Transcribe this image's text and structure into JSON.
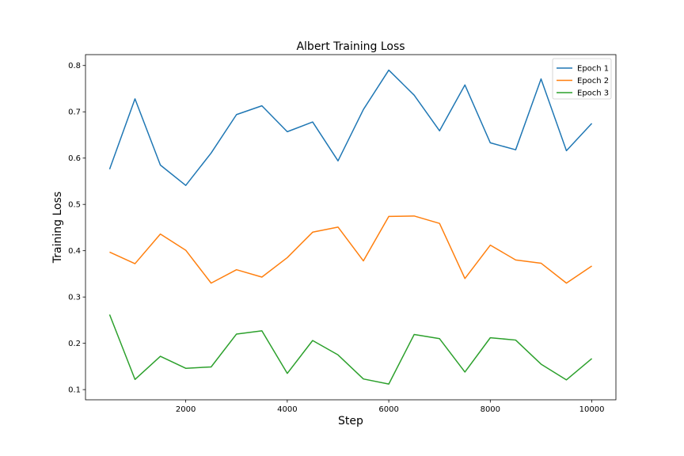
{
  "chart_data": {
    "type": "line",
    "title": "Albert Training Loss",
    "xlabel": "Step",
    "ylabel": "Training Loss",
    "x": [
      500,
      1000,
      1500,
      2000,
      2500,
      3000,
      3500,
      4000,
      4500,
      5000,
      5500,
      6000,
      6500,
      7000,
      7500,
      8000,
      8500,
      9000,
      9500,
      10000
    ],
    "xlim": [
      25,
      10475
    ],
    "ylim": [
      0.078,
      0.8235
    ],
    "xticks": [
      2000,
      4000,
      6000,
      8000,
      10000
    ],
    "yticks": [
      0.1,
      0.2,
      0.3,
      0.4,
      0.5,
      0.6,
      0.7,
      0.8
    ],
    "grid": false,
    "legend_position": "top-right",
    "series": [
      {
        "name": "Epoch 1",
        "color": "#1f77b4",
        "values": [
          0.576,
          0.728,
          0.585,
          0.541,
          0.611,
          0.694,
          0.713,
          0.657,
          0.678,
          0.594,
          0.705,
          0.79,
          0.736,
          0.659,
          0.758,
          0.633,
          0.618,
          0.771,
          0.616,
          0.675
        ]
      },
      {
        "name": "Epoch 2",
        "color": "#ff7f0e",
        "values": [
          0.397,
          0.372,
          0.436,
          0.401,
          0.33,
          0.359,
          0.343,
          0.385,
          0.44,
          0.451,
          0.378,
          0.474,
          0.475,
          0.459,
          0.34,
          0.412,
          0.38,
          0.373,
          0.33,
          0.367
        ]
      },
      {
        "name": "Epoch 3",
        "color": "#2ca02c",
        "values": [
          0.262,
          0.122,
          0.172,
          0.146,
          0.149,
          0.22,
          0.227,
          0.135,
          0.206,
          0.175,
          0.123,
          0.112,
          0.219,
          0.21,
          0.138,
          0.212,
          0.207,
          0.155,
          0.121,
          0.167
        ]
      }
    ]
  }
}
